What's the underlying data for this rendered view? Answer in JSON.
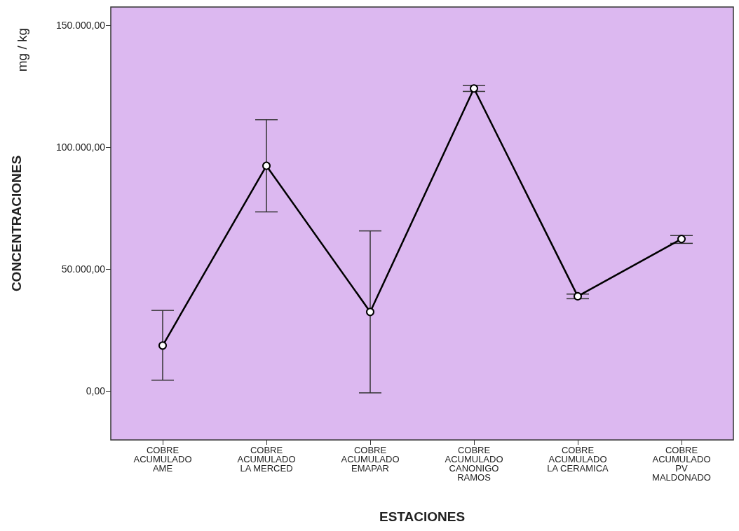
{
  "chart_data": {
    "type": "line",
    "xlabel": "ESTACIONES",
    "ylabel": "CONCENTRACIONES",
    "annotations": [
      "mg / kg"
    ],
    "categories": [
      "COBRE\nACUMULADO\nAME",
      "COBRE\nACUMULADO\nLA MERCED",
      "COBRE\nACUMULADO\nEMAPAR",
      "COBRE\nACUMULADO\nCANONIGO\nRAMOS",
      "COBRE\nACUMULADO\nLA CERAMICA",
      "COBRE\nACUMULADO\nPV\nMALDONADO"
    ],
    "series": [
      {
        "color": "#000000",
        "values": [
          18700,
          92400,
          32500,
          124100,
          38900,
          62400
        ],
        "errors": [
          [
            4500,
            33100
          ],
          [
            73500,
            111300
          ],
          [
            -700,
            65700
          ],
          [
            122900,
            125300
          ],
          [
            37900,
            39800
          ],
          [
            60600,
            63800
          ]
        ]
      }
    ],
    "ylim": [
      -20000,
      157500
    ],
    "yticks": [
      {
        "value": 0,
        "label": "0,00"
      },
      {
        "value": 50000,
        "label": "50.000,00"
      },
      {
        "value": 100000,
        "label": "100.000,00"
      },
      {
        "value": 150000,
        "label": "150.000,00"
      }
    ],
    "grid": false,
    "marker": "circle",
    "line_style": "solid"
  }
}
